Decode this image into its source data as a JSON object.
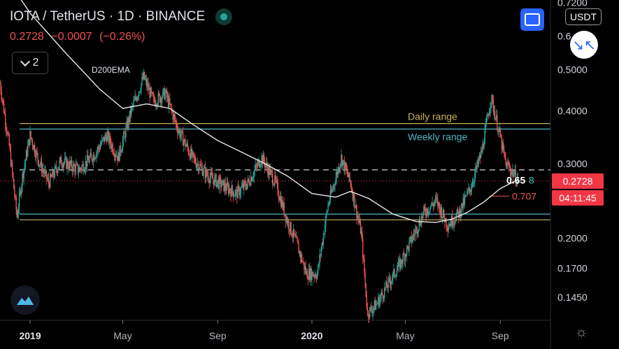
{
  "header": {
    "symbol": "IOTA / TetherUS",
    "interval": "1D",
    "exchange": "BINANCE",
    "sep": "·",
    "price": "0.2728",
    "change": "−0.0007",
    "change_pct": "(−0.26%)",
    "indicator_count": "2"
  },
  "controls": {
    "currency": "USDT",
    "fullscreen_icon": "fullscreen-icon",
    "minimize_icon": "minimize-icon",
    "settings_icon": "gear-icon",
    "logo_icon": "tradingview-logo"
  },
  "colors": {
    "up": "#26a69a",
    "down": "#ef5350",
    "ema": "#e8e8e8",
    "daily_range": "#c9b458",
    "weekly_range": "#4fb6c2",
    "badge_red": "#f23645"
  },
  "chart_data": {
    "type": "candlestick",
    "scale": "log",
    "x_ticks": [
      "2019",
      "May",
      "Sep",
      "2020",
      "May",
      "Sep"
    ],
    "y_ticks": [
      "0.7200",
      "0.6",
      "0.5000",
      "0.4000",
      "0.3000",
      "0.2728",
      "0.2000",
      "0.1700",
      "0.1450"
    ],
    "y_range": [
      0.128,
      0.73
    ],
    "x_range": [
      "2018-11-23",
      "2020-11-05"
    ],
    "indicator_label": "D200EMA",
    "annotations": [
      {
        "label": "Daily range",
        "level": 0.373
      },
      {
        "label": "Weekly range",
        "level": 0.362
      }
    ],
    "lower_lines": [
      {
        "name": "weekly",
        "level": 0.228
      },
      {
        "name": "daily",
        "level": 0.221
      }
    ],
    "dashed_level": 0.29,
    "last_price": 0.2728,
    "last_price_label": "0.2728",
    "countdown": "04:11:45",
    "fib_labels": [
      {
        "label": "0.65",
        "level": 0.2745
      },
      {
        "label": "8",
        "level": 0.2745
      },
      {
        "label": "0.707",
        "level": 0.2515
      }
    ],
    "close_path": [
      [
        "2018-11-23",
        0.465
      ],
      [
        "2018-12-05",
        0.33
      ],
      [
        "2018-12-15",
        0.225
      ],
      [
        "2018-12-22",
        0.28
      ],
      [
        "2019-01-01",
        0.35
      ],
      [
        "2019-01-12",
        0.305
      ],
      [
        "2019-01-25",
        0.27
      ],
      [
        "2019-02-10",
        0.305
      ],
      [
        "2019-03-05",
        0.29
      ],
      [
        "2019-03-25",
        0.315
      ],
      [
        "2019-04-10",
        0.35
      ],
      [
        "2019-04-25",
        0.31
      ],
      [
        "2019-05-12",
        0.4
      ],
      [
        "2019-05-28",
        0.48
      ],
      [
        "2019-06-10",
        0.42
      ],
      [
        "2019-06-25",
        0.44
      ],
      [
        "2019-07-12",
        0.36
      ],
      [
        "2019-07-30",
        0.31
      ],
      [
        "2019-08-20",
        0.28
      ],
      [
        "2019-09-10",
        0.265
      ],
      [
        "2019-09-25",
        0.255
      ],
      [
        "2019-10-10",
        0.27
      ],
      [
        "2019-10-28",
        0.31
      ],
      [
        "2019-11-15",
        0.27
      ],
      [
        "2019-11-30",
        0.22
      ],
      [
        "2019-12-12",
        0.195
      ],
      [
        "2019-12-25",
        0.165
      ],
      [
        "2020-01-08",
        0.165
      ],
      [
        "2020-01-22",
        0.24
      ],
      [
        "2020-02-08",
        0.31
      ],
      [
        "2020-02-20",
        0.27
      ],
      [
        "2020-03-05",
        0.205
      ],
      [
        "2020-03-13",
        0.133
      ],
      [
        "2020-03-25",
        0.14
      ],
      [
        "2020-04-08",
        0.155
      ],
      [
        "2020-04-25",
        0.175
      ],
      [
        "2020-05-10",
        0.2
      ],
      [
        "2020-05-25",
        0.23
      ],
      [
        "2020-06-10",
        0.245
      ],
      [
        "2020-06-25",
        0.215
      ],
      [
        "2020-07-10",
        0.23
      ],
      [
        "2020-07-25",
        0.265
      ],
      [
        "2020-08-08",
        0.32
      ],
      [
        "2020-08-20",
        0.43
      ],
      [
        "2020-08-30",
        0.36
      ],
      [
        "2020-09-08",
        0.3
      ],
      [
        "2020-09-18",
        0.285
      ],
      [
        "2020-09-24",
        0.2728
      ]
    ],
    "ema_path": [
      [
        "2018-12-10",
        0.78
      ],
      [
        "2019-01-01",
        0.68
      ],
      [
        "2019-02-15",
        0.55
      ],
      [
        "2019-04-01",
        0.45
      ],
      [
        "2019-05-01",
        0.405
      ],
      [
        "2019-06-01",
        0.415
      ],
      [
        "2019-07-01",
        0.405
      ],
      [
        "2019-08-01",
        0.37
      ],
      [
        "2019-09-01",
        0.34
      ],
      [
        "2019-10-01",
        0.32
      ],
      [
        "2019-11-01",
        0.3
      ],
      [
        "2019-12-01",
        0.28
      ],
      [
        "2020-01-01",
        0.255
      ],
      [
        "2020-02-01",
        0.25
      ],
      [
        "2020-02-20",
        0.258
      ],
      [
        "2020-03-15",
        0.248
      ],
      [
        "2020-04-15",
        0.228
      ],
      [
        "2020-05-15",
        0.219
      ],
      [
        "2020-06-10",
        0.218
      ],
      [
        "2020-07-01",
        0.222
      ],
      [
        "2020-07-20",
        0.23
      ],
      [
        "2020-08-10",
        0.243
      ],
      [
        "2020-09-01",
        0.262
      ],
      [
        "2020-09-24",
        0.275
      ]
    ]
  }
}
